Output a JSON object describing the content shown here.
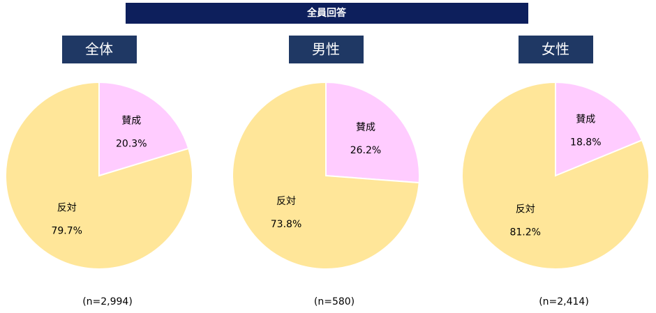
{
  "header": "全員回答",
  "chart_data": [
    {
      "type": "pie",
      "title": "全体",
      "categories": [
        "賛成",
        "反対"
      ],
      "values": [
        20.3,
        79.7
      ],
      "value_labels": [
        "20.3%",
        "79.7%"
      ],
      "colors": [
        "#ffccff",
        "#ffe699"
      ],
      "note": "(n=2,994)"
    },
    {
      "type": "pie",
      "title": "男性",
      "categories": [
        "賛成",
        "反対"
      ],
      "values": [
        26.2,
        73.8
      ],
      "value_labels": [
        "26.2%",
        "73.8%"
      ],
      "colors": [
        "#ffccff",
        "#ffe699"
      ],
      "note": "(n=580)"
    },
    {
      "type": "pie",
      "title": "女性",
      "categories": [
        "賛成",
        "反対"
      ],
      "values": [
        18.8,
        81.2
      ],
      "value_labels": [
        "18.8%",
        "81.2%"
      ],
      "colors": [
        "#ffccff",
        "#ffe699"
      ],
      "note": "(n=2,414)"
    }
  ]
}
